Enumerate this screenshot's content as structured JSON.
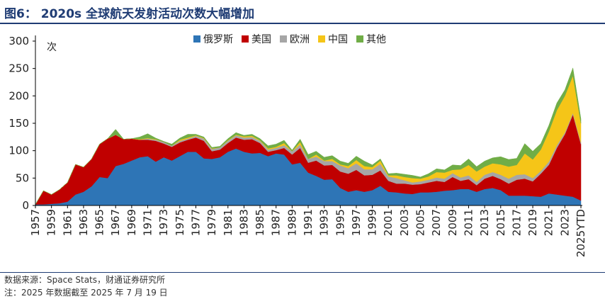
{
  "header": {
    "title": "图6：  2020s 全球航天发射活动次数大幅增加"
  },
  "footer": {
    "source": "数据来源：Space Stats，财通证券研究所",
    "note": "注：2025 年数据截至 2025 年 7 月 19 日"
  },
  "chart_data": {
    "type": "area",
    "stacked": true,
    "ylabel": "次",
    "ylim": [
      0,
      300
    ],
    "yticks": [
      0,
      50,
      100,
      150,
      200,
      250,
      300
    ],
    "xtick_labels": [
      "1957",
      "1959",
      "1961",
      "1963",
      "1965",
      "1967",
      "1969",
      "1971",
      "1973",
      "1975",
      "1977",
      "1979",
      "1981",
      "1983",
      "1985",
      "1987",
      "1989",
      "1991",
      "1993",
      "1995",
      "1997",
      "1999",
      "2001",
      "2003",
      "2005",
      "2007",
      "2009",
      "2011",
      "2013",
      "2015",
      "2017",
      "2019",
      "2021",
      "2023",
      "2025YTD"
    ],
    "legend_position": "top",
    "categories": [
      "1957",
      "1958",
      "1959",
      "1960",
      "1961",
      "1962",
      "1963",
      "1964",
      "1965",
      "1966",
      "1967",
      "1968",
      "1969",
      "1970",
      "1971",
      "1972",
      "1973",
      "1974",
      "1975",
      "1976",
      "1977",
      "1978",
      "1979",
      "1980",
      "1981",
      "1982",
      "1983",
      "1984",
      "1985",
      "1986",
      "1987",
      "1988",
      "1989",
      "1990",
      "1991",
      "1992",
      "1993",
      "1994",
      "1995",
      "1996",
      "1997",
      "1998",
      "1999",
      "2000",
      "2001",
      "2002",
      "2003",
      "2004",
      "2005",
      "2006",
      "2007",
      "2008",
      "2009",
      "2010",
      "2011",
      "2012",
      "2013",
      "2014",
      "2015",
      "2016",
      "2017",
      "2018",
      "2019",
      "2020",
      "2021",
      "2022",
      "2023",
      "2024",
      "2025YTD"
    ],
    "series": [
      {
        "name": "俄罗斯",
        "color": "#2e75b6",
        "values": [
          2,
          2,
          3,
          4,
          7,
          20,
          25,
          35,
          52,
          50,
          72,
          76,
          82,
          88,
          90,
          80,
          88,
          82,
          90,
          98,
          98,
          86,
          85,
          88,
          98,
          104,
          98,
          95,
          96,
          90,
          95,
          93,
          75,
          78,
          60,
          54,
          47,
          48,
          32,
          25,
          28,
          25,
          28,
          36,
          25,
          24,
          22,
          21,
          24,
          24,
          25,
          27,
          28,
          30,
          30,
          25,
          30,
          32,
          28,
          18,
          18,
          18,
          17,
          16,
          22,
          20,
          18,
          16,
          9
        ]
      },
      {
        "name": "美国",
        "color": "#c00000",
        "values": [
          0,
          25,
          17,
          25,
          35,
          55,
          45,
          50,
          60,
          72,
          57,
          45,
          40,
          32,
          30,
          38,
          25,
          25,
          25,
          22,
          26,
          32,
          14,
          14,
          16,
          20,
          22,
          26,
          18,
          8,
          6,
          12,
          18,
          27,
          18,
          28,
          26,
          26,
          30,
          33,
          37,
          30,
          28,
          28,
          20,
          16,
          18,
          17,
          15,
          18,
          20,
          16,
          24,
          15,
          18,
          12,
          19,
          22,
          20,
          22,
          29,
          31,
          27,
          42,
          52,
          85,
          112,
          150,
          103
        ]
      },
      {
        "name": "欧洲",
        "color": "#a6a6a6",
        "values": [
          0,
          0,
          0,
          0,
          0,
          0,
          0,
          0,
          0,
          0,
          0,
          0,
          0,
          0,
          2,
          2,
          3,
          2,
          3,
          2,
          3,
          4,
          4,
          4,
          4,
          4,
          4,
          4,
          4,
          4,
          4,
          5,
          6,
          6,
          7,
          7,
          8,
          7,
          11,
          10,
          12,
          11,
          10,
          12,
          8,
          10,
          6,
          4,
          5,
          5,
          6,
          6,
          7,
          6,
          7,
          6,
          7,
          7,
          8,
          9,
          9,
          8,
          6,
          5,
          6,
          5,
          3,
          3,
          3
        ]
      },
      {
        "name": "中国",
        "color": "#f5c518",
        "values": [
          0,
          0,
          0,
          0,
          0,
          0,
          0,
          0,
          0,
          0,
          0,
          0,
          0,
          1,
          1,
          1,
          0,
          0,
          2,
          2,
          1,
          1,
          1,
          0,
          1,
          1,
          2,
          2,
          1,
          2,
          2,
          4,
          0,
          5,
          0,
          4,
          1,
          4,
          2,
          4,
          6,
          6,
          4,
          6,
          2,
          5,
          6,
          8,
          5,
          6,
          10,
          11,
          6,
          15,
          19,
          19,
          15,
          16,
          19,
          22,
          18,
          38,
          34,
          39,
          55,
          64,
          67,
          68,
          35
        ]
      },
      {
        "name": "其他",
        "color": "#70ad47",
        "values": [
          0,
          0,
          0,
          0,
          0,
          0,
          0,
          0,
          0,
          0,
          10,
          0,
          0,
          4,
          8,
          2,
          1,
          3,
          3,
          6,
          2,
          2,
          2,
          2,
          3,
          4,
          2,
          3,
          3,
          5,
          5,
          5,
          2,
          5,
          8,
          6,
          6,
          6,
          6,
          5,
          7,
          9,
          4,
          3,
          3,
          4,
          5,
          5,
          3,
          5,
          6,
          5,
          9,
          7,
          11,
          9,
          10,
          10,
          14,
          13,
          12,
          18,
          15,
          11,
          11,
          13,
          11,
          14,
          8
        ]
      }
    ]
  }
}
